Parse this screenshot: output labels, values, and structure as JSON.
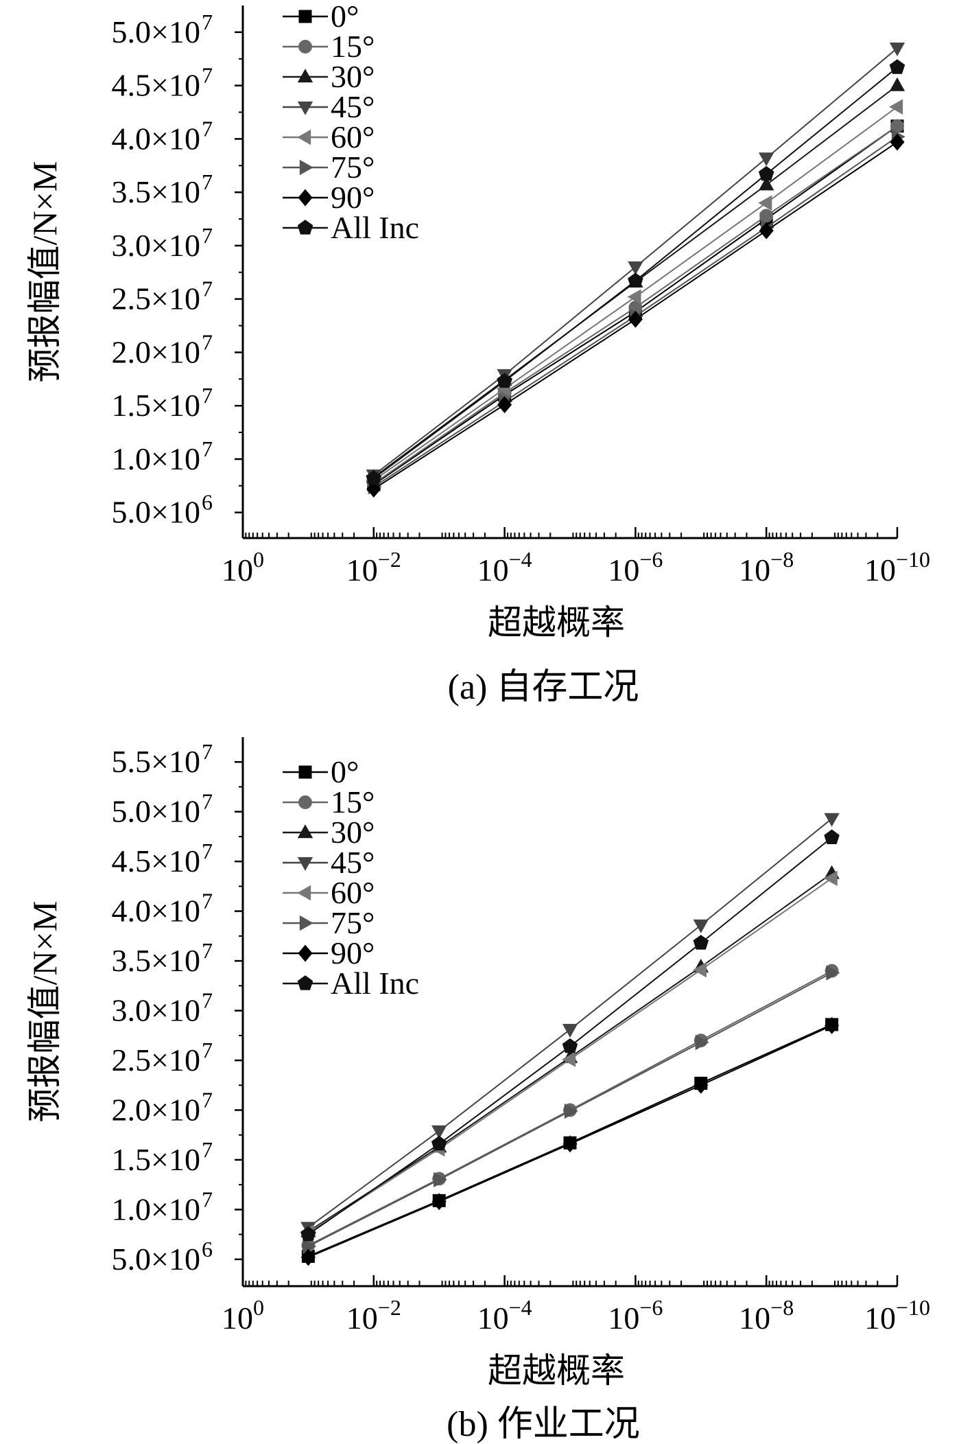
{
  "chart_data": [
    {
      "type": "line",
      "caption": "(a) 自存工况",
      "xlabel": "超越概率",
      "ylabel": "预报幅值/N×M",
      "x_scale": "log",
      "x_direction": "decreasing",
      "xlim": [
        1,
        1e-10
      ],
      "ylim": [
        2600000.0,
        52500000.0
      ],
      "x_tick_labels": [
        {
          "x": 1,
          "base": "10",
          "exp": "0"
        },
        {
          "x": 0.01,
          "base": "10",
          "exp": "−2"
        },
        {
          "x": 0.0001,
          "base": "10",
          "exp": "−4"
        },
        {
          "x": 1e-06,
          "base": "10",
          "exp": "−6"
        },
        {
          "x": 1e-08,
          "base": "10",
          "exp": "−8"
        },
        {
          "x": 1e-10,
          "base": "10",
          "exp": "−10"
        }
      ],
      "y_tick_labels": [
        {
          "y": 5000000.0,
          "mantissa": "5.0×10",
          "exp": "6"
        },
        {
          "y": 10000000.0,
          "mantissa": "1.0×10",
          "exp": "7"
        },
        {
          "y": 15000000.0,
          "mantissa": "1.5×10",
          "exp": "7"
        },
        {
          "y": 20000000.0,
          "mantissa": "2.0×10",
          "exp": "7"
        },
        {
          "y": 25000000.0,
          "mantissa": "2.5×10",
          "exp": "7"
        },
        {
          "y": 30000000.0,
          "mantissa": "3.0×10",
          "exp": "7"
        },
        {
          "y": 35000000.0,
          "mantissa": "3.5×10",
          "exp": "7"
        },
        {
          "y": 40000000.0,
          "mantissa": "4.0×10",
          "exp": "7"
        },
        {
          "y": 45000000.0,
          "mantissa": "4.5×10",
          "exp": "7"
        },
        {
          "y": 50000000.0,
          "mantissa": "5.0×10",
          "exp": "7"
        }
      ],
      "x": [
        0.01,
        0.0001,
        1e-06,
        1e-08,
        1e-10
      ],
      "series": [
        {
          "name": "0°",
          "marker": "square",
          "color": "#000000",
          "values": [
            7600000.0,
            16000000.0,
            23800000.0,
            32500000.0,
            41200000.0
          ]
        },
        {
          "name": "15°",
          "marker": "circle",
          "color": "#666666",
          "values": [
            7700000.0,
            16200000.0,
            24200000.0,
            32800000.0,
            41200000.0
          ]
        },
        {
          "name": "30°",
          "marker": "triangle-up",
          "color": "#1a1a1a",
          "values": [
            8300000.0,
            17400000.0,
            26600000.0,
            35700000.0,
            45000000.0
          ]
        },
        {
          "name": "45°",
          "marker": "triangle-down",
          "color": "#444444",
          "values": [
            8500000.0,
            17900000.0,
            28000000.0,
            38200000.0,
            48500000.0
          ]
        },
        {
          "name": "60°",
          "marker": "triangle-left",
          "color": "#777777",
          "values": [
            8000000.0,
            16600000.0,
            25200000.0,
            34000000.0,
            43000000.0
          ]
        },
        {
          "name": "75°",
          "marker": "triangle-right",
          "color": "#555555",
          "values": [
            7400000.0,
            15400000.0,
            23400000.0,
            31700000.0,
            40200000.0
          ]
        },
        {
          "name": "90°",
          "marker": "diamond",
          "color": "#000000",
          "values": [
            7200000.0,
            15100000.0,
            23100000.0,
            31400000.0,
            39700000.0
          ]
        },
        {
          "name": "All Inc",
          "marker": "pentagon",
          "color": "#111111",
          "values": [
            8200000.0,
            17300000.0,
            26700000.0,
            36700000.0,
            46700000.0
          ]
        }
      ]
    },
    {
      "type": "line",
      "caption": "(b) 作业工况",
      "xlabel": "超越概率",
      "ylabel": "预报幅值/N×M",
      "x_scale": "log",
      "x_direction": "decreasing",
      "xlim": [
        1,
        1e-10
      ],
      "ylim": [
        2300000.0,
        57500000.0
      ],
      "x_tick_labels": [
        {
          "x": 1,
          "base": "10",
          "exp": "0"
        },
        {
          "x": 0.01,
          "base": "10",
          "exp": "−2"
        },
        {
          "x": 0.0001,
          "base": "10",
          "exp": "−4"
        },
        {
          "x": 1e-06,
          "base": "10",
          "exp": "−6"
        },
        {
          "x": 1e-08,
          "base": "10",
          "exp": "−8"
        },
        {
          "x": 1e-10,
          "base": "10",
          "exp": "−10"
        }
      ],
      "y_tick_labels": [
        {
          "y": 5000000.0,
          "mantissa": "5.0×10",
          "exp": "6"
        },
        {
          "y": 10000000.0,
          "mantissa": "1.0×10",
          "exp": "7"
        },
        {
          "y": 15000000.0,
          "mantissa": "1.5×10",
          "exp": "7"
        },
        {
          "y": 20000000.0,
          "mantissa": "2.0×10",
          "exp": "7"
        },
        {
          "y": 25000000.0,
          "mantissa": "2.5×10",
          "exp": "7"
        },
        {
          "y": 30000000.0,
          "mantissa": "3.0×10",
          "exp": "7"
        },
        {
          "y": 35000000.0,
          "mantissa": "3.5×10",
          "exp": "7"
        },
        {
          "y": 40000000.0,
          "mantissa": "4.0×10",
          "exp": "7"
        },
        {
          "y": 45000000.0,
          "mantissa": "4.5×10",
          "exp": "7"
        },
        {
          "y": 50000000.0,
          "mantissa": "5.0×10",
          "exp": "7"
        },
        {
          "y": 55000000.0,
          "mantissa": "5.5×10",
          "exp": "7"
        }
      ],
      "x": [
        0.1,
        0.001,
        1e-05,
        1e-07,
        1e-09
      ],
      "series": [
        {
          "name": "0°",
          "marker": "square",
          "color": "#000000",
          "values": [
            5300000.0,
            10900000.0,
            16700000.0,
            22700000.0,
            28600000.0
          ]
        },
        {
          "name": "15°",
          "marker": "circle",
          "color": "#666666",
          "values": [
            6400000.0,
            13100000.0,
            20000000.0,
            27000000.0,
            34000000.0
          ]
        },
        {
          "name": "30°",
          "marker": "triangle-up",
          "color": "#1a1a1a",
          "values": [
            7800000.0,
            16300000.0,
            25300000.0,
            34400000.0,
            43800000.0
          ]
        },
        {
          "name": "45°",
          "marker": "triangle-down",
          "color": "#444444",
          "values": [
            8200000.0,
            17900000.0,
            28100000.0,
            38600000.0,
            49300000.0
          ]
        },
        {
          "name": "60°",
          "marker": "triangle-left",
          "color": "#777777",
          "values": [
            7700000.0,
            16100000.0,
            25100000.0,
            34100000.0,
            43300000.0
          ]
        },
        {
          "name": "75°",
          "marker": "triangle-right",
          "color": "#555555",
          "values": [
            6300000.0,
            13000000.0,
            19900000.0,
            26800000.0,
            33800000.0
          ]
        },
        {
          "name": "90°",
          "marker": "diamond",
          "color": "#000000",
          "values": [
            5200000.0,
            10800000.0,
            16600000.0,
            22500000.0,
            28500000.0
          ]
        },
        {
          "name": "All Inc",
          "marker": "pentagon",
          "color": "#111111",
          "values": [
            7500000.0,
            16600000.0,
            26400000.0,
            36800000.0,
            47400000.0
          ]
        }
      ]
    }
  ]
}
